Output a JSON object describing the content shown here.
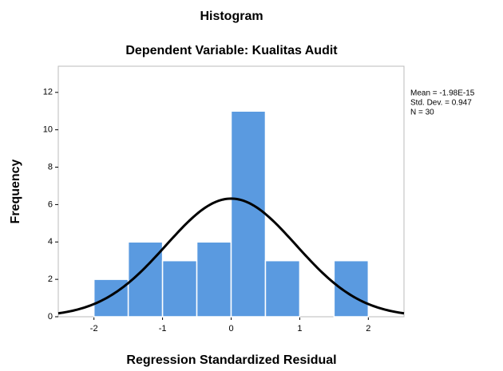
{
  "chart_data": {
    "type": "histogram",
    "title": "Histogram",
    "subtitle": "Dependent Variable: Kualitas Audit",
    "x_label": "Regression Standardized Residual",
    "y_label": "Frequency",
    "bins": [
      -2,
      -1.5,
      -1,
      -0.5,
      0,
      0.5,
      1,
      1.5,
      2
    ],
    "counts": [
      2,
      4,
      3,
      4,
      11,
      3,
      0,
      3
    ],
    "color": "#5a9ae0",
    "xlim": [
      -2.52,
      2.52
    ],
    "xticks": [
      -2,
      -1,
      0,
      1,
      2
    ],
    "ylim": [
      0,
      13.4
    ],
    "yticks": [
      0,
      2,
      4,
      6,
      8,
      10,
      12
    ],
    "curve": {
      "mean": -1.98e-15,
      "sd": 0.947,
      "n": 30,
      "color": "#000000"
    },
    "stats_labels": [
      "Mean = -1.98E-15",
      "Std. Dev. = 0.947",
      "N = 30"
    ]
  }
}
